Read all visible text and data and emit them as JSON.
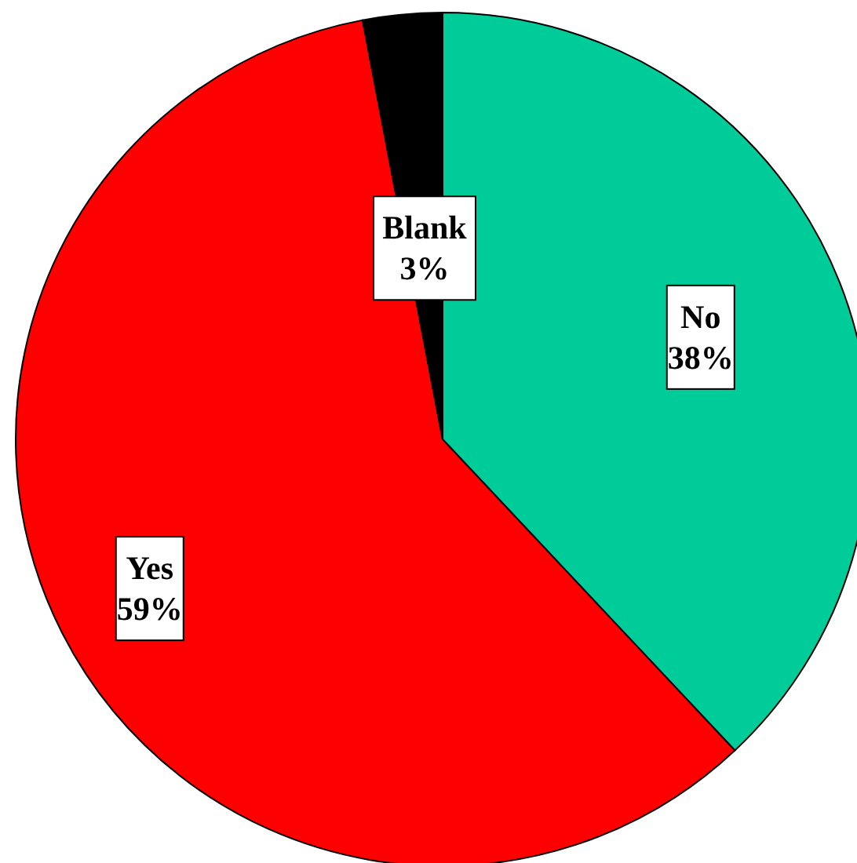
{
  "chart_data": {
    "type": "pie",
    "categories": [
      "No",
      "Yes",
      "Blank"
    ],
    "values": [
      38,
      59,
      3
    ],
    "value_labels": [
      "38%",
      "59%",
      "3%"
    ],
    "colors": [
      "#00cc99",
      "#ff0000",
      "#000000"
    ]
  }
}
